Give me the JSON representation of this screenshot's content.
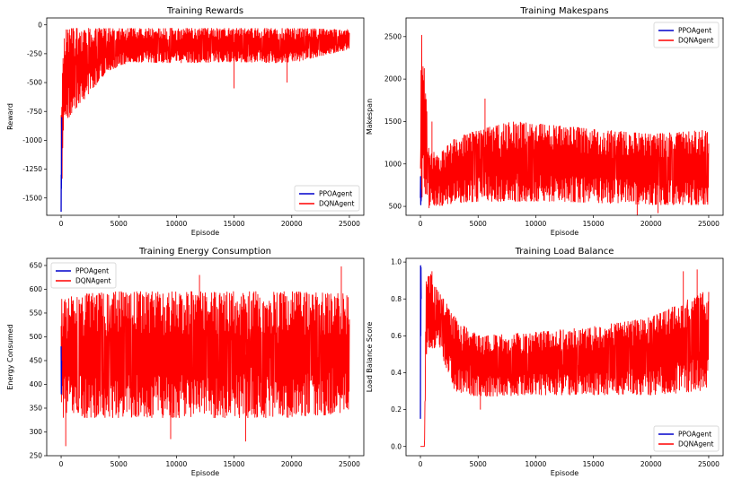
{
  "chart_data": [
    {
      "type": "line",
      "title": "Training Rewards",
      "xlabel": "Episode",
      "ylabel": "Reward",
      "xlim": [
        -1250,
        26250
      ],
      "ylim": [
        -1650,
        60
      ],
      "xticks": [
        0,
        5000,
        10000,
        15000,
        20000,
        25000
      ],
      "yticks": [
        0,
        -250,
        -500,
        -750,
        -1000,
        -1250,
        -1500
      ],
      "legend": "lower-right",
      "series": [
        {
          "name": "PPOAgent",
          "color": "#0000cc",
          "x_range": [
            0,
            50
          ],
          "points": [
            [
              0,
              -1620
            ],
            [
              10,
              -1300
            ],
            [
              20,
              -1420
            ],
            [
              30,
              -1200
            ],
            [
              40,
              -1000
            ],
            [
              50,
              -800
            ]
          ]
        },
        {
          "name": "DQNAgent",
          "color": "#ff0000",
          "x_range": [
            0,
            25000
          ],
          "envelope": [
            [
              0,
              -1550,
              -600
            ],
            [
              300,
              -850,
              -40
            ],
            [
              1000,
              -750,
              -30
            ],
            [
              2000,
              -650,
              -30
            ],
            [
              4000,
              -400,
              -30
            ],
            [
              6000,
              -320,
              -30
            ],
            [
              10000,
              -330,
              -30
            ],
            [
              15000,
              -320,
              -30
            ],
            [
              20000,
              -330,
              -30
            ],
            [
              25000,
              -210,
              -40
            ]
          ],
          "spikes": [
            [
              15000,
              -550
            ],
            [
              19600,
              -500
            ],
            [
              700,
              -800
            ],
            [
              1100,
              -700
            ]
          ]
        }
      ]
    },
    {
      "type": "line",
      "title": "Training Makespans",
      "xlabel": "Episode",
      "ylabel": "Makespan",
      "xlim": [
        -1250,
        26250
      ],
      "ylim": [
        395,
        2720
      ],
      "xticks": [
        0,
        5000,
        10000,
        15000,
        20000,
        25000
      ],
      "yticks": [
        500,
        1000,
        1500,
        2000,
        2500
      ],
      "legend": "top-right",
      "series": [
        {
          "name": "PPOAgent",
          "color": "#0000cc",
          "x_range": [
            0,
            60
          ],
          "points": [
            [
              0,
              600
            ],
            [
              15,
              850
            ],
            [
              30,
              520
            ],
            [
              45,
              700
            ],
            [
              60,
              560
            ]
          ]
        },
        {
          "name": "DQNAgent",
          "color": "#ff0000",
          "x_range": [
            0,
            25000
          ],
          "envelope": [
            [
              0,
              600,
              2680
            ],
            [
              400,
              500,
              2100
            ],
            [
              700,
              480,
              1200
            ],
            [
              1500,
              500,
              1100
            ],
            [
              3000,
              540,
              1300
            ],
            [
              5000,
              560,
              1400
            ],
            [
              8000,
              560,
              1500
            ],
            [
              12000,
              560,
              1450
            ],
            [
              16000,
              540,
              1400
            ],
            [
              20000,
              520,
              1350
            ],
            [
              25000,
              520,
              1400
            ]
          ],
          "spikes": [
            [
              5600,
              1770
            ],
            [
              18800,
              380
            ],
            [
              1000,
              1500
            ],
            [
              20600,
              420
            ]
          ]
        }
      ]
    },
    {
      "type": "line",
      "title": "Training Energy Consumption",
      "xlabel": "Episode",
      "ylabel": "Energy Consumed",
      "xlim": [
        -1250,
        26250
      ],
      "ylim": [
        250,
        665
      ],
      "xticks": [
        0,
        5000,
        10000,
        15000,
        20000,
        25000
      ],
      "yticks": [
        250,
        300,
        350,
        400,
        450,
        500,
        550,
        600,
        650
      ],
      "legend": "top-left",
      "series": [
        {
          "name": "PPOAgent",
          "color": "#0000cc",
          "x_range": [
            0,
            40
          ],
          "points": [
            [
              0,
              480
            ],
            [
              20,
              380
            ],
            [
              40,
              450
            ]
          ]
        },
        {
          "name": "DQNAgent",
          "color": "#ff0000",
          "x_range": [
            0,
            25000
          ],
          "envelope": [
            [
              0,
              330,
              580
            ],
            [
              2000,
              330,
              590
            ],
            [
              5000,
              330,
              595
            ],
            [
              10000,
              330,
              595
            ],
            [
              15000,
              330,
              595
            ],
            [
              20000,
              330,
              595
            ],
            [
              25000,
              340,
              590
            ]
          ],
          "spikes": [
            [
              24300,
              648
            ],
            [
              400,
              270
            ],
            [
              16000,
              280
            ],
            [
              9500,
              285
            ],
            [
              12000,
              630
            ]
          ]
        }
      ]
    },
    {
      "type": "line",
      "title": "Training Load Balance",
      "xlabel": "Episode",
      "ylabel": "Load Balance Score",
      "xlim": [
        -1250,
        26250
      ],
      "ylim": [
        -0.05,
        1.02
      ],
      "xticks": [
        0,
        5000,
        10000,
        15000,
        20000,
        25000
      ],
      "yticks": [
        0.0,
        0.2,
        0.4,
        0.6,
        0.8,
        1.0
      ],
      "legend": "lower-right",
      "series": [
        {
          "name": "PPOAgent",
          "color": "#0000cc",
          "x_range": [
            0,
            60
          ],
          "points": [
            [
              0,
              0.15
            ],
            [
              15,
              0.98
            ],
            [
              30,
              0.6
            ],
            [
              45,
              0.97
            ],
            [
              60,
              0.8
            ]
          ]
        },
        {
          "name": "DQNAgent",
          "color": "#ff0000",
          "x_range": [
            0,
            25000
          ],
          "envelope": [
            [
              0,
              0.0,
              0.0
            ],
            [
              350,
              0.0,
              0.0
            ],
            [
              500,
              0.5,
              0.99
            ],
            [
              1500,
              0.55,
              0.85
            ],
            [
              3000,
              0.3,
              0.7
            ],
            [
              5000,
              0.27,
              0.6
            ],
            [
              10000,
              0.28,
              0.62
            ],
            [
              15000,
              0.28,
              0.65
            ],
            [
              20000,
              0.28,
              0.7
            ],
            [
              25000,
              0.3,
              0.85
            ]
          ],
          "spikes": [
            [
              24000,
              0.96
            ],
            [
              22800,
              0.95
            ],
            [
              1000,
              0.95
            ],
            [
              5200,
              0.2
            ]
          ]
        }
      ]
    }
  ]
}
